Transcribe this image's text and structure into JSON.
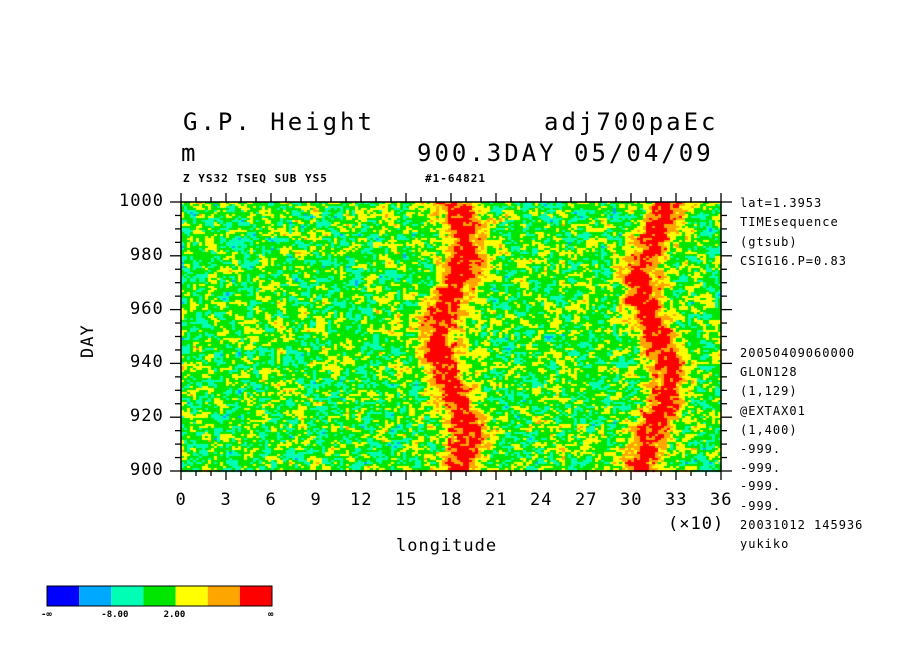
{
  "header": {
    "title_left": "G.P. Height",
    "title_right": "adj700paEc",
    "units": "m",
    "time_info": "900.3DAY 05/04/09",
    "sub_left": "Z YS32 TSEQ SUB YS5",
    "sub_right": "#1-64821"
  },
  "side_info": [
    "lat=1.3953",
    "TIMEsequence",
    "(gtsub)",
    "CSIG16.P=0.83",
    "20050409060000",
    "GLON128",
    "(1,129)",
    "@EXTAX01",
    "(1,400)",
    "-999.",
    "-999.",
    "-999.",
    "-999.",
    "20031012 145936",
    "yukiko"
  ],
  "colorbar": {
    "colors": [
      "#0000ff",
      "#00a8ff",
      "#00ffb4",
      "#00e600",
      "#ffff00",
      "#ffa500",
      "#ff0000"
    ],
    "labels": [
      "-∞",
      "-8.00",
      "2.00",
      "∞"
    ]
  },
  "chart_data": {
    "type": "heatmap",
    "xlabel": "longitude",
    "ylabel": "DAY",
    "x_multiplier": "(×10)",
    "xlim": [
      0,
      36
    ],
    "ylim": [
      900,
      1000
    ],
    "x_ticks": [
      "0",
      "3",
      "6",
      "9",
      "12",
      "15",
      "18",
      "21",
      "24",
      "27",
      "30",
      "33",
      "36"
    ],
    "y_ticks": [
      "900",
      "920",
      "940",
      "960",
      "980",
      "1000"
    ],
    "color_levels": [
      -8.0,
      2.0
    ],
    "high_bands_longitude_x10": [
      18,
      31.5
    ]
  }
}
